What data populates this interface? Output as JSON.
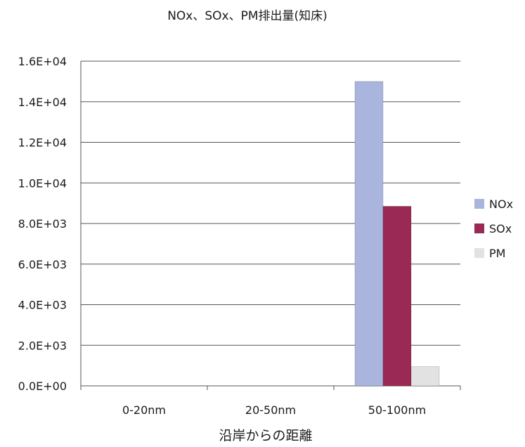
{
  "chart_data": {
    "type": "bar",
    "title": "NOx、SOx、PM排出量(知床)",
    "xlabel": "沿岸からの距離",
    "ylabel": "",
    "categories": [
      "0-20nm",
      "20-50nm",
      "50-100nm"
    ],
    "series": [
      {
        "name": "NOx",
        "color": "#a9b5dc",
        "values": [
          0,
          0,
          15000
        ]
      },
      {
        "name": "SOx",
        "color": "#9a2a55",
        "values": [
          0,
          0,
          8850
        ]
      },
      {
        "name": "PM",
        "color": "#e2e2e2",
        "values": [
          0,
          0,
          950
        ]
      }
    ],
    "ylim": [
      0,
      16000
    ],
    "yticks": [
      "0.0E+00",
      "2.0E+03",
      "4.0E+03",
      "6.0E+03",
      "8.0E+03",
      "1.0E+04",
      "1.2E+04",
      "1.4E+04",
      "1.6E+04"
    ],
    "grid": true,
    "legend_position": "right"
  }
}
